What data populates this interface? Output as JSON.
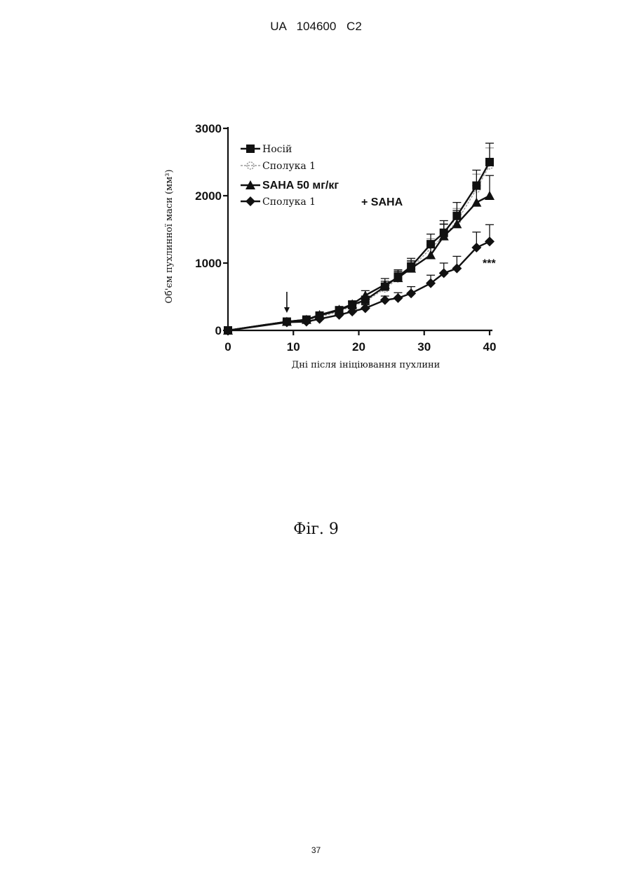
{
  "header": {
    "doc_id": "UA   104600   C2"
  },
  "figure": {
    "caption": "Фіг. 9"
  },
  "footer": {
    "page_number": "37"
  },
  "chart_data": {
    "type": "line",
    "title": "",
    "xlabel": "Дні після ініціювання пухлини",
    "ylabel": "Об'єм пухлинної маси (мм³)",
    "xlim": [
      0,
      40
    ],
    "ylim": [
      0,
      3000
    ],
    "x_ticks": [
      0,
      10,
      20,
      30,
      40
    ],
    "y_ticks": [
      0,
      1000,
      2000,
      3000
    ],
    "grid": false,
    "legend_position": "top-left",
    "treatment_start_day": 9,
    "significance_label": "***",
    "series": [
      {
        "name": "Носій",
        "marker": "square",
        "color": "#111111",
        "x": [
          0,
          9,
          12,
          14,
          17,
          19,
          21,
          24,
          26,
          28,
          31,
          33,
          35,
          38,
          40
        ],
        "y": [
          0,
          130,
          160,
          220,
          300,
          380,
          450,
          650,
          800,
          950,
          1280,
          1450,
          1700,
          2150,
          2500
        ],
        "err": [
          0,
          20,
          25,
          30,
          40,
          50,
          60,
          80,
          100,
          120,
          150,
          180,
          200,
          230,
          280
        ]
      },
      {
        "name": "Сполука 1",
        "marker": "circle",
        "color": "#9a9a9a",
        "x": [
          0,
          9,
          12,
          14,
          17,
          19,
          21,
          24,
          26,
          28,
          31,
          33,
          35,
          38,
          40
        ],
        "y": [
          0,
          130,
          150,
          200,
          280,
          360,
          430,
          620,
          770,
          920,
          1220,
          1400,
          1620,
          2100,
          2450
        ],
        "err": [
          0,
          20,
          25,
          30,
          40,
          50,
          60,
          80,
          100,
          120,
          140,
          170,
          190,
          220,
          260
        ]
      },
      {
        "name": "SAHA 50 мг/кг",
        "marker": "triangle",
        "color": "#111111",
        "x": [
          0,
          9,
          12,
          14,
          17,
          19,
          21,
          24,
          26,
          28,
          31,
          33,
          35,
          38,
          40
        ],
        "y": [
          0,
          130,
          160,
          230,
          310,
          390,
          520,
          680,
          780,
          920,
          1120,
          1400,
          1580,
          1900,
          2000
        ],
        "err": [
          0,
          20,
          25,
          30,
          40,
          50,
          70,
          90,
          100,
          110,
          150,
          180,
          200,
          250,
          300
        ]
      },
      {
        "name": "Сполука 1 + SAHA",
        "legend_line1": "Сполука 1",
        "legend_line2": "+ SAHA",
        "marker": "diamond",
        "color": "#111111",
        "x": [
          0,
          9,
          12,
          14,
          17,
          19,
          21,
          24,
          26,
          28,
          31,
          33,
          35,
          38,
          40
        ],
        "y": [
          0,
          120,
          130,
          170,
          230,
          280,
          330,
          450,
          480,
          550,
          700,
          850,
          920,
          1230,
          1320
        ],
        "err": [
          0,
          15,
          20,
          25,
          30,
          40,
          50,
          60,
          80,
          100,
          120,
          150,
          180,
          230,
          250
        ]
      }
    ]
  }
}
